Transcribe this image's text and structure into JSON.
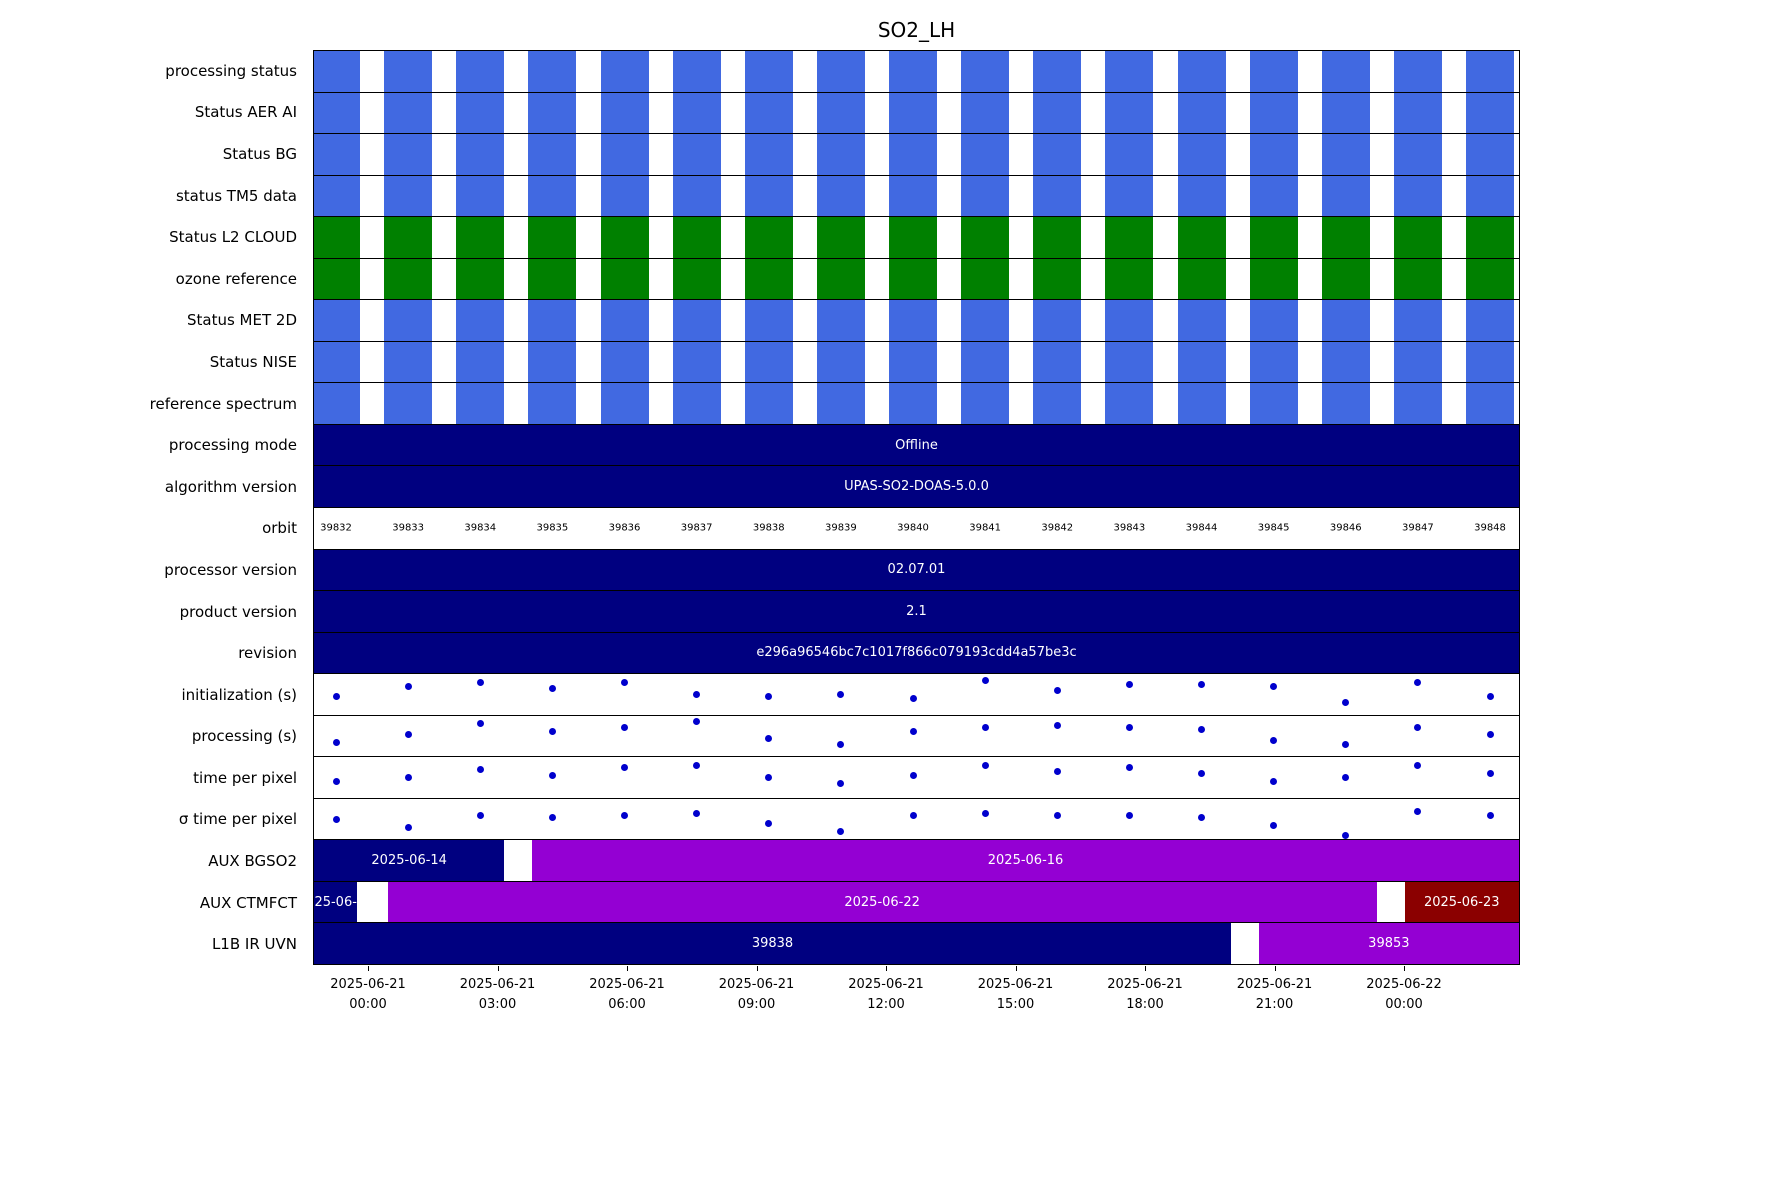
{
  "chart_data": {
    "type": "status-timeline",
    "title": "SO2_LH",
    "legend": "none",
    "grid": false,
    "colors": {
      "blue": "#4169e1",
      "green": "#008000",
      "navy": "#000080",
      "purple": "#9400d3",
      "darkred": "#8b0000",
      "dot": "#0000cd",
      "text_on_bar": "#ffffff"
    },
    "orbits": [
      "39832",
      "39833",
      "39834",
      "39835",
      "39836",
      "39837",
      "39838",
      "39839",
      "39840",
      "39841",
      "39842",
      "39843",
      "39844",
      "39845",
      "39846",
      "39847",
      "39848"
    ],
    "x_ticks": [
      {
        "line1": "2025-06-21",
        "line2": "00:00"
      },
      {
        "line1": "2025-06-21",
        "line2": "03:00"
      },
      {
        "line1": "2025-06-21",
        "line2": "06:00"
      },
      {
        "line1": "2025-06-21",
        "line2": "09:00"
      },
      {
        "line1": "2025-06-21",
        "line2": "12:00"
      },
      {
        "line1": "2025-06-21",
        "line2": "15:00"
      },
      {
        "line1": "2025-06-21",
        "line2": "18:00"
      },
      {
        "line1": "2025-06-21",
        "line2": "21:00"
      },
      {
        "line1": "2025-06-22",
        "line2": "00:00"
      }
    ],
    "rows": [
      {
        "label": "processing status",
        "type": "stripes",
        "color": "blue"
      },
      {
        "label": "Status AER AI",
        "type": "stripes",
        "color": "blue"
      },
      {
        "label": "Status BG",
        "type": "stripes",
        "color": "blue"
      },
      {
        "label": "status TM5 data",
        "type": "stripes",
        "color": "blue"
      },
      {
        "label": "Status L2  CLOUD",
        "type": "stripes",
        "color": "green"
      },
      {
        "label": "ozone reference",
        "type": "stripes",
        "color": "green"
      },
      {
        "label": "Status MET 2D",
        "type": "stripes",
        "color": "blue"
      },
      {
        "label": "Status NISE",
        "type": "stripes",
        "color": "blue"
      },
      {
        "label": "reference spectrum",
        "type": "stripes",
        "color": "blue"
      },
      {
        "label": "processing mode",
        "type": "solid",
        "color": "navy",
        "text": "Offline"
      },
      {
        "label": "algorithm version",
        "type": "solid",
        "color": "navy",
        "text": "UPAS-SO2-DOAS-5.0.0"
      },
      {
        "label": "orbit",
        "type": "orbits"
      },
      {
        "label": "processor version",
        "type": "solid",
        "color": "navy",
        "text": "02.07.01"
      },
      {
        "label": "product version",
        "type": "solid",
        "color": "navy",
        "text": "2.1"
      },
      {
        "label": "revision",
        "type": "solid",
        "color": "navy",
        "text": "e296a96546bc7c1017f866c079193cdd4a57be3c"
      },
      {
        "label": "initialization (s)",
        "type": "scatter",
        "values": [
          0.45,
          0.7,
          0.8,
          0.65,
          0.8,
          0.5,
          0.45,
          0.5,
          0.4,
          0.85,
          0.6,
          0.75,
          0.75,
          0.7,
          0.3,
          0.8,
          0.45
        ]
      },
      {
        "label": "processing (s)",
        "type": "scatter",
        "values": [
          0.35,
          0.55,
          0.8,
          0.6,
          0.7,
          0.85,
          0.45,
          0.3,
          0.6,
          0.7,
          0.75,
          0.7,
          0.65,
          0.4,
          0.3,
          0.7,
          0.55
        ]
      },
      {
        "label": "time per pixel",
        "type": "scatter",
        "values": [
          0.4,
          0.5,
          0.7,
          0.55,
          0.75,
          0.8,
          0.5,
          0.35,
          0.55,
          0.8,
          0.65,
          0.75,
          0.6,
          0.4,
          0.5,
          0.8,
          0.6
        ]
      },
      {
        "label": "σ time per pixel",
        "type": "scatter",
        "values": [
          0.5,
          0.3,
          0.6,
          0.55,
          0.6,
          0.65,
          0.4,
          0.2,
          0.6,
          0.65,
          0.6,
          0.6,
          0.55,
          0.35,
          0.1,
          0.7,
          0.6
        ]
      },
      {
        "label": "AUX BGSO2",
        "type": "segments",
        "segments": [
          {
            "text": "2025-06-14",
            "color": "navy",
            "start": 0,
            "end": 0.158
          },
          {
            "text": "2025-06-16",
            "color": "purple",
            "start": 0.181,
            "end": 1.0
          }
        ]
      },
      {
        "label": "AUX CTMFCT",
        "type": "segments",
        "segments": [
          {
            "text": "25-06-",
            "color": "navy",
            "start": 0,
            "end": 0.036
          },
          {
            "text": "2025-06-22",
            "color": "purple",
            "start": 0.061,
            "end": 0.882
          },
          {
            "text": "2025-06-23",
            "color": "darkred",
            "start": 0.905,
            "end": 1.0
          }
        ]
      },
      {
        "label": "L1B IR UVN",
        "type": "segments",
        "segments": [
          {
            "text": "39838",
            "color": "navy",
            "start": 0,
            "end": 0.761
          },
          {
            "text": "39853",
            "color": "purple",
            "start": 0.784,
            "end": 1.0
          }
        ]
      }
    ]
  }
}
